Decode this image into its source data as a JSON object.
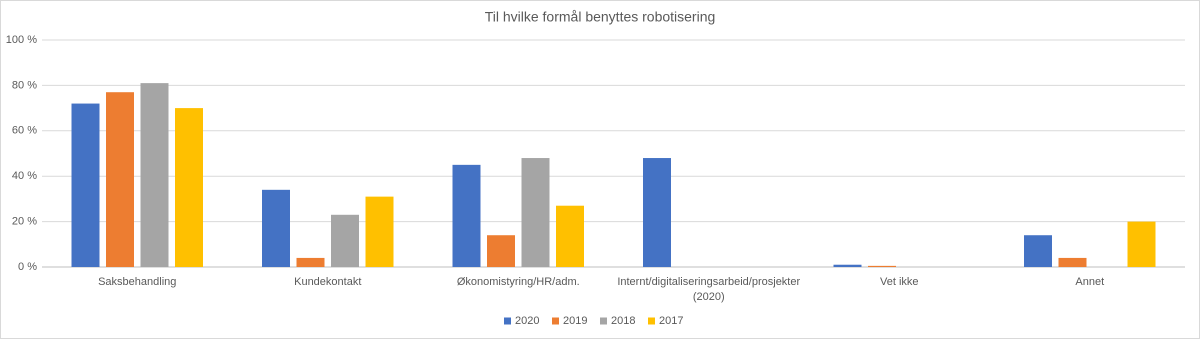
{
  "chart_data": {
    "type": "bar",
    "title": "Til hvilke formål benyttes robotisering",
    "categories": [
      "Saksbehandling",
      "Kundekontakt",
      "Økonomistyring/HR/adm.",
      "Internt/digitaliseringsarbeid/prosjekter (2020)",
      "Vet ikke",
      "Annet"
    ],
    "series": [
      {
        "name": "2020",
        "color": "#4472c4",
        "values": [
          72,
          34,
          45,
          48,
          1,
          14
        ]
      },
      {
        "name": "2019",
        "color": "#ed7d31",
        "values": [
          77,
          4,
          14,
          null,
          0.5,
          4
        ]
      },
      {
        "name": "2018",
        "color": "#a5a5a5",
        "values": [
          81,
          23,
          48,
          null,
          null,
          null
        ]
      },
      {
        "name": "2017",
        "color": "#ffc000",
        "values": [
          70,
          31,
          27,
          null,
          null,
          20
        ]
      }
    ],
    "ylim": [
      0,
      100
    ],
    "yticks": [
      {
        "value": 0,
        "label": "0 %"
      },
      {
        "value": 20,
        "label": "20 %"
      },
      {
        "value": 40,
        "label": "40 %"
      },
      {
        "value": 60,
        "label": "60 %"
      },
      {
        "value": 80,
        "label": "80 %"
      },
      {
        "value": 100,
        "label": "100 %"
      }
    ],
    "grid": true,
    "legend": "bottom"
  }
}
